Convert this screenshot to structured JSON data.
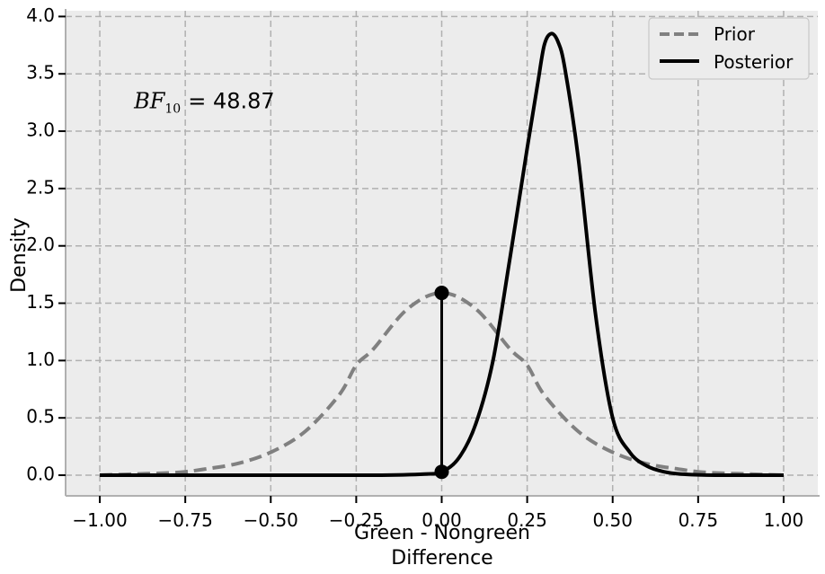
{
  "chart_data": {
    "type": "line",
    "xlabel": "Green - Nongreen",
    "xlabel2": "Difference",
    "ylabel": "Density",
    "xlim": [
      -1.1,
      1.1
    ],
    "ylim": [
      -0.18,
      4.05
    ],
    "grid": true,
    "legend_position": "top-right",
    "x_ticks": [
      -1.0,
      -0.75,
      -0.5,
      -0.25,
      0.0,
      0.25,
      0.5,
      0.75,
      1.0
    ],
    "x_tick_labels": [
      "−1.00",
      "−0.75",
      "−0.50",
      "−0.25",
      "0.00",
      "0.25",
      "0.50",
      "0.75",
      "1.00"
    ],
    "y_ticks": [
      0.0,
      0.5,
      1.0,
      1.5,
      2.0,
      2.5,
      3.0,
      3.5,
      4.0
    ],
    "y_tick_labels": [
      "0.0",
      "0.5",
      "1.0",
      "1.5",
      "2.0",
      "2.5",
      "3.0",
      "3.5",
      "4.0"
    ],
    "annotation": {
      "bf_label_main": "BF",
      "bf_label_sub": "10",
      "bf_value": "= 48.87",
      "x": -0.9,
      "y": 3.2
    },
    "savage_dickey": {
      "x": 0.0,
      "prior_density": 1.59,
      "posterior_density": 0.03
    },
    "series": [
      {
        "name": "Prior",
        "style": "dashed",
        "color": "#808080",
        "x": [
          -1.0,
          -0.9,
          -0.8,
          -0.75,
          -0.7,
          -0.6,
          -0.5,
          -0.4,
          -0.3,
          -0.25,
          -0.2,
          -0.1,
          0.0,
          0.1,
          0.2,
          0.25,
          0.3,
          0.4,
          0.5,
          0.6,
          0.7,
          0.75,
          0.8,
          0.9,
          1.0
        ],
        "y": [
          0.0,
          0.01,
          0.02,
          0.03,
          0.05,
          0.1,
          0.2,
          0.38,
          0.7,
          0.96,
          1.1,
          1.45,
          1.59,
          1.45,
          1.1,
          0.96,
          0.7,
          0.38,
          0.2,
          0.1,
          0.05,
          0.03,
          0.02,
          0.01,
          0.0
        ]
      },
      {
        "name": "Posterior",
        "style": "solid",
        "color": "#000000",
        "x": [
          -1.0,
          -0.5,
          -0.2,
          -0.05,
          0.0,
          0.05,
          0.1,
          0.15,
          0.2,
          0.25,
          0.28,
          0.3,
          0.32,
          0.34,
          0.36,
          0.4,
          0.45,
          0.5,
          0.55,
          0.6,
          0.65,
          0.7,
          0.8,
          1.0
        ],
        "y": [
          0.0,
          0.0,
          0.0,
          0.01,
          0.03,
          0.15,
          0.45,
          1.0,
          1.9,
          2.85,
          3.4,
          3.75,
          3.85,
          3.78,
          3.55,
          2.75,
          1.4,
          0.5,
          0.2,
          0.08,
          0.03,
          0.01,
          0.0,
          0.0
        ]
      }
    ],
    "colors": {
      "plot_background": "#ececec",
      "grid": "#b0b0b0",
      "prior": "#808080",
      "posterior": "#000000"
    }
  }
}
